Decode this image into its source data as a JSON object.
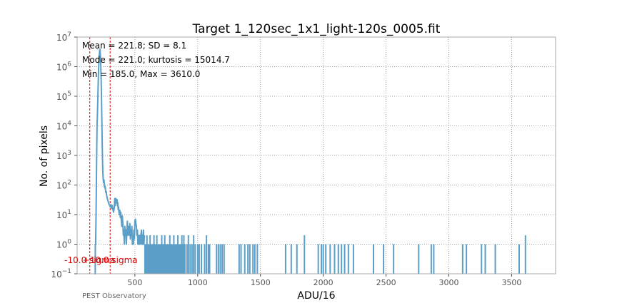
{
  "chart_data": {
    "type": "line",
    "title": "Target 1_120sec_1x1_light-120s_0005.fit",
    "xlabel": "ADU/16",
    "ylabel": "No. of pixels",
    "xlim": [
      40,
      3850
    ],
    "ylim": [
      0.1,
      10000000
    ],
    "yscale": "log",
    "grid": true,
    "x_ticks": [
      500,
      1000,
      1500,
      2000,
      2500,
      3000,
      3500
    ],
    "x_tick_labels": [
      "500",
      "1000",
      "1500",
      "2000",
      "2500",
      "3000",
      "3500"
    ],
    "y_ticks": [
      0.1,
      1,
      10,
      100,
      1000,
      10000,
      100000,
      1000000,
      10000000
    ],
    "y_tick_labels": [
      {
        "base": "10",
        "exp": "−1"
      },
      {
        "base": "10",
        "exp": "0"
      },
      {
        "base": "10",
        "exp": "1"
      },
      {
        "base": "10",
        "exp": "2"
      },
      {
        "base": "10",
        "exp": "3"
      },
      {
        "base": "10",
        "exp": "4"
      },
      {
        "base": "10",
        "exp": "5"
      },
      {
        "base": "10",
        "exp": "6"
      },
      {
        "base": "10",
        "exp": "7"
      }
    ],
    "stats_lines": [
      "Mean = 221.8; SD = 8.1",
      "Mode = 221.0; kurtosis = 15014.7",
      "Min = 185.0, Max = 3610.0"
    ],
    "sigma_markers": [
      {
        "label": "-10.0 sigma",
        "x": 140.8
      },
      {
        "label": "+10.0 sigma",
        "x": 302.8
      }
    ],
    "footer": "PEST Observatory",
    "colors": {
      "series": "#5b9fc8",
      "markers": "#dd0000",
      "grid": "#888888",
      "axes": "#aaaaaa"
    },
    "series": [
      {
        "points": [
          [
            180,
            0.1
          ],
          [
            184,
            0.1
          ],
          [
            185,
            1
          ],
          [
            187,
            1
          ],
          [
            189,
            3
          ],
          [
            191,
            12
          ],
          [
            193,
            80
          ],
          [
            195,
            600
          ],
          [
            197,
            3000
          ],
          [
            199,
            12000
          ],
          [
            201,
            20000
          ],
          [
            203,
            40000
          ],
          [
            205,
            90000
          ],
          [
            207,
            200000
          ],
          [
            209,
            420000
          ],
          [
            211,
            800000
          ],
          [
            213,
            1300000
          ],
          [
            215,
            1900000
          ],
          [
            217,
            2600000
          ],
          [
            219,
            3300000
          ],
          [
            221,
            3900000
          ],
          [
            223,
            3500000
          ],
          [
            225,
            2600000
          ],
          [
            227,
            1700000
          ],
          [
            229,
            900000
          ],
          [
            231,
            400000
          ],
          [
            233,
            160000
          ],
          [
            235,
            50000
          ],
          [
            237,
            15000
          ],
          [
            239,
            4000
          ],
          [
            241,
            1200
          ],
          [
            243,
            500
          ],
          [
            245,
            250
          ],
          [
            248,
            150
          ],
          [
            251,
            120
          ],
          [
            254,
            150
          ],
          [
            257,
            100
          ],
          [
            260,
            80
          ],
          [
            263,
            90
          ],
          [
            266,
            70
          ],
          [
            269,
            55
          ],
          [
            272,
            60
          ],
          [
            275,
            45
          ],
          [
            280,
            35
          ],
          [
            285,
            30
          ],
          [
            290,
            25
          ],
          [
            295,
            22
          ],
          [
            300,
            20
          ],
          [
            305,
            18
          ],
          [
            310,
            22
          ],
          [
            315,
            16
          ],
          [
            320,
            20
          ],
          [
            325,
            15
          ],
          [
            330,
            12
          ],
          [
            335,
            16
          ],
          [
            340,
            35
          ],
          [
            343,
            20
          ],
          [
            346,
            30
          ],
          [
            349,
            35
          ],
          [
            352,
            25
          ],
          [
            355,
            28
          ],
          [
            358,
            32
          ],
          [
            361,
            20
          ],
          [
            364,
            25
          ],
          [
            367,
            15
          ],
          [
            370,
            18
          ],
          [
            373,
            12
          ],
          [
            376,
            10
          ],
          [
            380,
            14
          ],
          [
            384,
            8
          ],
          [
            388,
            12
          ],
          [
            392,
            6
          ],
          [
            396,
            4
          ],
          [
            400,
            9
          ],
          [
            404,
            5
          ],
          [
            408,
            2
          ],
          [
            412,
            3
          ],
          [
            416,
            1
          ],
          [
            420,
            4
          ],
          [
            424,
            2
          ],
          [
            428,
            3
          ],
          [
            432,
            1
          ],
          [
            436,
            3
          ],
          [
            440,
            6
          ],
          [
            444,
            2
          ],
          [
            448,
            4
          ],
          [
            452,
            3
          ],
          [
            456,
            2
          ],
          [
            460,
            5
          ],
          [
            464,
            1.5
          ],
          [
            468,
            3
          ],
          [
            472,
            2
          ],
          [
            476,
            4
          ],
          [
            480,
            1
          ],
          [
            484,
            2
          ],
          [
            488,
            1
          ],
          [
            492,
            3
          ],
          [
            496,
            1.5
          ],
          [
            500,
            6
          ],
          [
            504,
            7
          ],
          [
            508,
            5
          ],
          [
            512,
            4
          ],
          [
            516,
            2
          ],
          [
            520,
            3
          ],
          [
            524,
            1
          ],
          [
            528,
            2
          ],
          [
            532,
            1
          ],
          [
            536,
            1
          ],
          [
            540,
            2
          ],
          [
            544,
            1
          ],
          [
            548,
            2
          ],
          [
            552,
            3
          ],
          [
            556,
            1
          ],
          [
            560,
            2
          ],
          [
            564,
            1
          ],
          [
            568,
            3
          ],
          [
            572,
            1
          ],
          [
            576,
            2
          ]
        ],
        "spikes": [
          [
            580,
            1
          ],
          [
            588,
            1
          ],
          [
            596,
            2
          ],
          [
            605,
            1
          ],
          [
            614,
            1
          ],
          [
            621,
            2
          ],
          [
            628,
            1
          ],
          [
            636,
            1
          ],
          [
            645,
            1
          ],
          [
            652,
            2
          ],
          [
            660,
            1
          ],
          [
            668,
            1
          ],
          [
            675,
            2
          ],
          [
            683,
            1
          ],
          [
            690,
            1
          ],
          [
            698,
            1
          ],
          [
            706,
            1
          ],
          [
            714,
            2
          ],
          [
            722,
            1
          ],
          [
            730,
            1
          ],
          [
            738,
            2
          ],
          [
            746,
            1
          ],
          [
            754,
            1
          ],
          [
            762,
            1
          ],
          [
            770,
            1
          ],
          [
            778,
            2
          ],
          [
            786,
            1
          ],
          [
            794,
            1
          ],
          [
            802,
            1
          ],
          [
            810,
            2
          ],
          [
            818,
            1
          ],
          [
            826,
            1
          ],
          [
            834,
            1
          ],
          [
            842,
            2
          ],
          [
            850,
            1
          ],
          [
            858,
            1
          ],
          [
            866,
            1
          ],
          [
            874,
            2
          ],
          [
            882,
            1
          ],
          [
            890,
            2
          ],
          [
            898,
            1
          ],
          [
            915,
            1
          ],
          [
            926,
            2
          ],
          [
            940,
            1
          ],
          [
            955,
            1
          ],
          [
            968,
            2
          ],
          [
            980,
            1
          ],
          [
            1000,
            1
          ],
          [
            1012,
            1
          ],
          [
            1030,
            1
          ],
          [
            1055,
            1
          ],
          [
            1070,
            2
          ],
          [
            1085,
            1
          ],
          [
            1095,
            1
          ],
          [
            1150,
            1
          ],
          [
            1165,
            1
          ],
          [
            1180,
            1
          ],
          [
            1195,
            1
          ],
          [
            1210,
            1
          ],
          [
            1330,
            1
          ],
          [
            1345,
            1
          ],
          [
            1375,
            1
          ],
          [
            1400,
            1
          ],
          [
            1415,
            1
          ],
          [
            1440,
            1
          ],
          [
            1455,
            1
          ],
          [
            1475,
            1
          ],
          [
            1700,
            1
          ],
          [
            1745,
            1
          ],
          [
            1790,
            1
          ],
          [
            1850,
            2
          ],
          [
            1960,
            1
          ],
          [
            1985,
            1
          ],
          [
            2000,
            1
          ],
          [
            2020,
            1
          ],
          [
            2055,
            1
          ],
          [
            2090,
            1
          ],
          [
            2120,
            1
          ],
          [
            2145,
            1
          ],
          [
            2170,
            1
          ],
          [
            2200,
            1
          ],
          [
            2240,
            1
          ],
          [
            2400,
            1
          ],
          [
            2480,
            1
          ],
          [
            2560,
            1
          ],
          [
            2760,
            1
          ],
          [
            2860,
            1
          ],
          [
            2880,
            1
          ],
          [
            3110,
            1
          ],
          [
            3140,
            1
          ],
          [
            3260,
            1
          ],
          [
            3290,
            1
          ],
          [
            3370,
            1
          ],
          [
            3560,
            1
          ],
          [
            3610,
            2
          ]
        ]
      }
    ]
  }
}
